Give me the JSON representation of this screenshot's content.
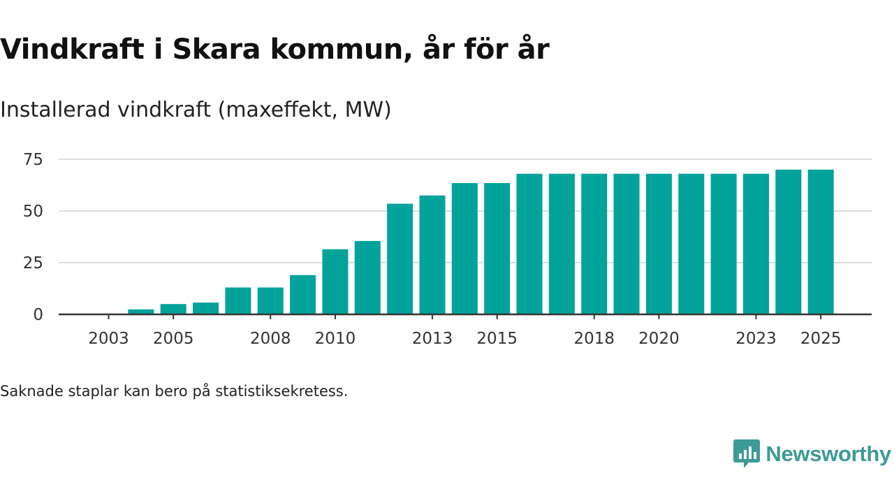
{
  "header": {
    "title": "Vindkraft i Skara kommun, år för år",
    "subtitle": "Installerad vindkraft (maxeffekt, MW)"
  },
  "footer": {
    "note": "Saknade staplar kan bero på statistiksekretess.",
    "brand": "Newsworthy"
  },
  "colors": {
    "bar": "#02a39a",
    "brand": "#3d9a96",
    "grid": "#dddddd",
    "axis": "#333333",
    "tick_label": "#333333"
  },
  "chart_data": {
    "type": "bar",
    "title": "Vindkraft i Skara kommun, år för år",
    "subtitle": "Installerad vindkraft (maxeffekt, MW)",
    "xlabel": "",
    "ylabel": "",
    "categories": [
      "2003",
      "2004",
      "2005",
      "2006",
      "2007",
      "2008",
      "2009",
      "2010",
      "2011",
      "2012",
      "2013",
      "2014",
      "2015",
      "2016",
      "2017",
      "2018",
      "2019",
      "2020",
      "2021",
      "2022",
      "2023",
      "2024",
      "2025"
    ],
    "values": [
      null,
      2.4,
      5,
      5.7,
      13,
      13,
      19,
      31.5,
      35.5,
      53.5,
      57.5,
      63.5,
      63.5,
      68,
      68,
      68,
      68,
      68,
      68,
      68,
      68,
      70,
      70
    ],
    "x_tick_labels": [
      "2003",
      "2005",
      "2008",
      "2010",
      "2013",
      "2015",
      "2018",
      "2020",
      "2023",
      "2025"
    ],
    "y_ticks": [
      0,
      25,
      50,
      75
    ],
    "ylim": [
      0,
      75
    ],
    "grid": true
  }
}
